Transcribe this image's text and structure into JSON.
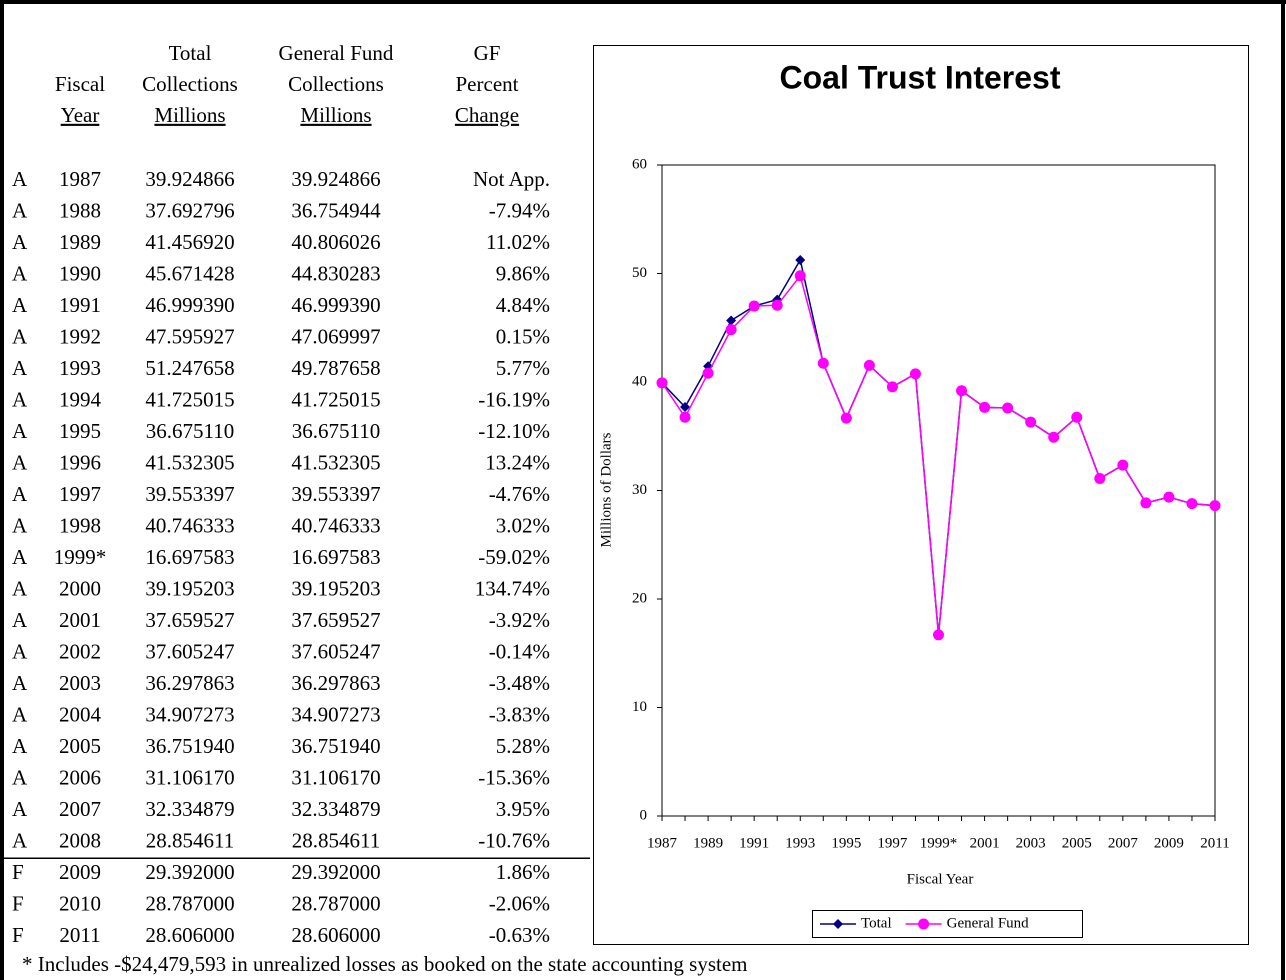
{
  "table": {
    "headers": [
      [
        "Fiscal",
        "Year"
      ],
      [
        "Total",
        "Collections",
        "Millions"
      ],
      [
        "General Fund",
        "Collections",
        "Millions"
      ],
      [
        "GF",
        "Percent",
        "Change"
      ]
    ],
    "rows": [
      [
        "A",
        "1987",
        "39.924866",
        "39.924866",
        "Not App."
      ],
      [
        "A",
        "1988",
        "37.692796",
        "36.754944",
        "-7.94%"
      ],
      [
        "A",
        "1989",
        "41.456920",
        "40.806026",
        "11.02%"
      ],
      [
        "A",
        "1990",
        "45.671428",
        "44.830283",
        "9.86%"
      ],
      [
        "A",
        "1991",
        "46.999390",
        "46.999390",
        "4.84%"
      ],
      [
        "A",
        "1992",
        "47.595927",
        "47.069997",
        "0.15%"
      ],
      [
        "A",
        "1993",
        "51.247658",
        "49.787658",
        "5.77%"
      ],
      [
        "A",
        "1994",
        "41.725015",
        "41.725015",
        "-16.19%"
      ],
      [
        "A",
        "1995",
        "36.675110",
        "36.675110",
        "-12.10%"
      ],
      [
        "A",
        "1996",
        "41.532305",
        "41.532305",
        "13.24%"
      ],
      [
        "A",
        "1997",
        "39.553397",
        "39.553397",
        "-4.76%"
      ],
      [
        "A",
        "1998",
        "40.746333",
        "40.746333",
        "3.02%"
      ],
      [
        "A",
        "1999*",
        "16.697583",
        "16.697583",
        "-59.02%"
      ],
      [
        "A",
        "2000",
        "39.195203",
        "39.195203",
        "134.74%"
      ],
      [
        "A",
        "2001",
        "37.659527",
        "37.659527",
        "-3.92%"
      ],
      [
        "A",
        "2002",
        "37.605247",
        "37.605247",
        "-0.14%"
      ],
      [
        "A",
        "2003",
        "36.297863",
        "36.297863",
        "-3.48%"
      ],
      [
        "A",
        "2004",
        "34.907273",
        "34.907273",
        "-3.83%"
      ],
      [
        "A",
        "2005",
        "36.751940",
        "36.751940",
        "5.28%"
      ],
      [
        "A",
        "2006",
        "31.106170",
        "31.106170",
        "-15.36%"
      ],
      [
        "A",
        "2007",
        "32.334879",
        "32.334879",
        "3.95%"
      ],
      [
        "A",
        "2008",
        "28.854611",
        "28.854611",
        "-10.76%"
      ],
      [
        "F",
        "2009",
        "29.392000",
        "29.392000",
        "1.86%"
      ],
      [
        "F",
        "2010",
        "28.787000",
        "28.787000",
        "-2.06%"
      ],
      [
        "F",
        "2011",
        "28.606000",
        "28.606000",
        "-0.63%"
      ]
    ]
  },
  "footnote": "*  Includes -$24,479,593 in unrealized losses as booked on the state accounting system",
  "chart_data": {
    "type": "line",
    "title": "Coal Trust Interest",
    "y_label": "Millions of Dollars",
    "x_label": "Fiscal Year",
    "categories": [
      "1987",
      null,
      "1989",
      null,
      "1991",
      null,
      "1993",
      null,
      "1995",
      null,
      "1997",
      null,
      "1999*",
      null,
      "2001",
      null,
      "2003",
      null,
      "2005",
      null,
      "2007",
      null,
      "2009",
      null,
      "2011"
    ],
    "series": [
      {
        "name": "Total",
        "color": "#000080",
        "marker": "diamond",
        "values": [
          39.924866,
          37.692796,
          41.45692,
          45.671428,
          46.99939,
          47.595927,
          51.247658,
          41.725015,
          36.67511,
          41.532305,
          39.553397,
          40.746333,
          16.697583,
          39.195203,
          37.659527,
          37.605247,
          36.297863,
          34.907273,
          36.75194,
          31.10617,
          32.334879,
          28.854611,
          29.392,
          28.787,
          28.606
        ]
      },
      {
        "name": "General Fund",
        "color": "#ff00ff",
        "marker": "circle",
        "values": [
          39.924866,
          36.754944,
          40.806026,
          44.830283,
          46.99939,
          47.069997,
          49.787658,
          41.725015,
          36.67511,
          41.532305,
          39.553397,
          40.746333,
          16.697583,
          39.195203,
          37.659527,
          37.605247,
          36.297863,
          34.907273,
          36.75194,
          31.10617,
          32.334879,
          28.854611,
          29.392,
          28.787,
          28.606
        ]
      }
    ],
    "ylim": [
      0,
      60
    ],
    "yticks": [
      0,
      10,
      20,
      30,
      40,
      50,
      60
    ],
    "grid": false,
    "legend": "bottom"
  }
}
